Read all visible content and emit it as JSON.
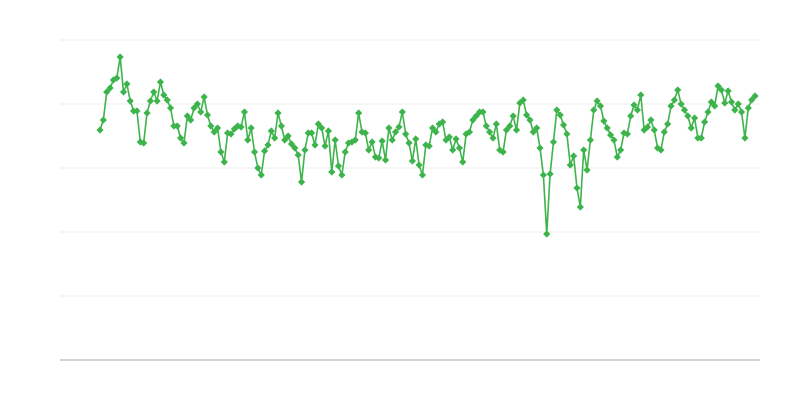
{
  "chart_data": {
    "type": "line",
    "color": "#3cb44b",
    "grid": true,
    "ylim": [
      0,
      320
    ],
    "yticks": [
      0,
      64,
      128,
      192,
      256,
      320
    ],
    "values": [
      230,
      240,
      268,
      272,
      280,
      282,
      303,
      268,
      276,
      259,
      249,
      249,
      218,
      217,
      247,
      259,
      268,
      259,
      278,
      265,
      260,
      252,
      234,
      234,
      222,
      217,
      244,
      240,
      252,
      256,
      248,
      263,
      245,
      234,
      228,
      232,
      208,
      198,
      227,
      226,
      231,
      234,
      233,
      248,
      220,
      232,
      208,
      192,
      185,
      209,
      215,
      229,
      222,
      247,
      234,
      220,
      224,
      216,
      212,
      205,
      178,
      210,
      227,
      227,
      215,
      236,
      232,
      214,
      229,
      188,
      220,
      194,
      185,
      208,
      217,
      218,
      220,
      247,
      228,
      227,
      210,
      218,
      203,
      202,
      219,
      200,
      232,
      220,
      228,
      233,
      248,
      226,
      217,
      199,
      221,
      195,
      185,
      215,
      214,
      232,
      228,
      236,
      238,
      220,
      223,
      210,
      221,
      212,
      198,
      226,
      228,
      240,
      244,
      248,
      248,
      234,
      228,
      222,
      236,
      210,
      208,
      230,
      234,
      244,
      230,
      257,
      260,
      245,
      240,
      228,
      232,
      212,
      185,
      126,
      186,
      218,
      250,
      245,
      235,
      226,
      195,
      204,
      172,
      153,
      210,
      190,
      220,
      250,
      259,
      254,
      239,
      232,
      225,
      220,
      203,
      210,
      227,
      226,
      244,
      255,
      250,
      265,
      230,
      233,
      240,
      230,
      212,
      210,
      228,
      236,
      254,
      260,
      270,
      256,
      250,
      244,
      232,
      242,
      222,
      222,
      238,
      248,
      258,
      254,
      274,
      270,
      257,
      269,
      258,
      250,
      256,
      248,
      222,
      252,
      260,
      264
    ]
  }
}
